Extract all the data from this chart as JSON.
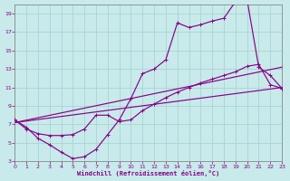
{
  "bg_color": "#c8eaea",
  "grid_color": "#aad4d4",
  "line_color": "#880088",
  "xlabel": "Windchill (Refroidissement éolien,°C)",
  "xlim": [
    0,
    23
  ],
  "ylim": [
    3,
    20
  ],
  "xticks": [
    0,
    1,
    2,
    3,
    4,
    5,
    6,
    7,
    8,
    9,
    10,
    11,
    12,
    13,
    14,
    15,
    16,
    17,
    18,
    19,
    20,
    21,
    22,
    23
  ],
  "yticks": [
    3,
    5,
    7,
    9,
    11,
    13,
    15,
    17,
    19
  ],
  "curve1_x": [
    0,
    1,
    2,
    3,
    4,
    5,
    6,
    7,
    8,
    9,
    10,
    11,
    12,
    13,
    14,
    15,
    16,
    17,
    18,
    19,
    20,
    21,
    22,
    23
  ],
  "curve1_y": [
    7.5,
    6.7,
    5.5,
    4.8,
    4.0,
    3.3,
    3.5,
    4.3,
    5.9,
    7.5,
    9.8,
    12.5,
    13.0,
    14.0,
    18.0,
    17.5,
    17.8,
    18.2,
    18.5,
    20.3,
    20.5,
    13.2,
    12.3,
    10.9
  ],
  "curve2_x": [
    0,
    1,
    2,
    3,
    4,
    5,
    6,
    7,
    8,
    9,
    10,
    11,
    12,
    13,
    14,
    15,
    16,
    17,
    18,
    19,
    20,
    21,
    22,
    23
  ],
  "curve2_y": [
    7.5,
    6.5,
    6.0,
    5.8,
    5.8,
    5.9,
    6.5,
    8.0,
    8.0,
    7.3,
    7.5,
    8.5,
    9.2,
    9.9,
    10.5,
    11.0,
    11.5,
    11.9,
    12.3,
    12.7,
    13.3,
    13.5,
    11.3,
    10.9
  ],
  "line1_x": [
    0,
    23
  ],
  "line1_y": [
    7.2,
    11.0
  ],
  "line2_x": [
    0,
    23
  ],
  "line2_y": [
    7.2,
    13.2
  ]
}
